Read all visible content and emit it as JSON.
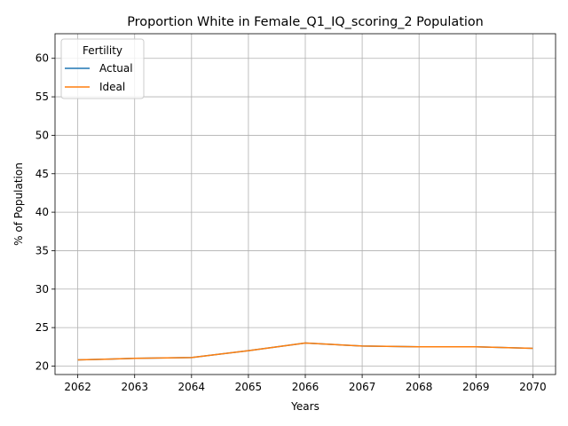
{
  "chart_data": {
    "type": "line",
    "title": "Proportion White in Female_Q1_IQ_scoring_2 Population",
    "xlabel": "Years",
    "ylabel": "% of Population",
    "x": [
      2062,
      2063,
      2064,
      2065,
      2066,
      2067,
      2068,
      2069,
      2070
    ],
    "xlim": [
      2061.6,
      2070.4
    ],
    "ylim": [
      18.9,
      63.2
    ],
    "yticks": [
      20,
      25,
      30,
      35,
      40,
      45,
      50,
      55,
      60
    ],
    "grid": true,
    "legend": {
      "title": "Fertility",
      "placement": "upper-left"
    },
    "series": [
      {
        "name": "Actual",
        "color": "#1f77b4",
        "values": [
          20.8,
          21.0,
          21.1,
          22.0,
          23.0,
          22.6,
          22.5,
          22.5,
          22.3
        ]
      },
      {
        "name": "Ideal",
        "color": "#ff7f0e",
        "values": [
          20.8,
          21.0,
          21.1,
          22.0,
          23.0,
          22.6,
          22.5,
          22.5,
          22.3
        ]
      }
    ]
  }
}
